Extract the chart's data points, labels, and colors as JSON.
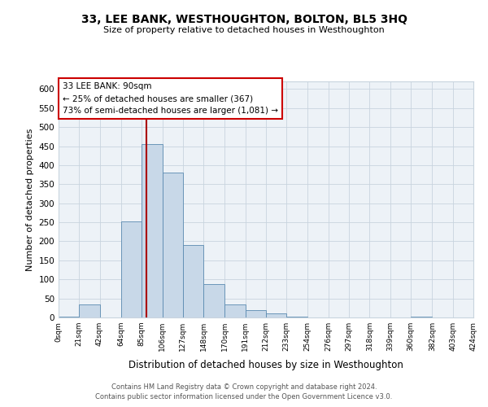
{
  "title": "33, LEE BANK, WESTHOUGHTON, BOLTON, BL5 3HQ",
  "subtitle": "Size of property relative to detached houses in Westhoughton",
  "xlabel": "Distribution of detached houses by size in Westhoughton",
  "ylabel": "Number of detached properties",
  "bin_edges": [
    0,
    21,
    42,
    64,
    85,
    106,
    127,
    148,
    170,
    191,
    212,
    233,
    254,
    276,
    297,
    318,
    339,
    360,
    382,
    403,
    424
  ],
  "bin_counts": [
    2,
    35,
    0,
    252,
    455,
    380,
    190,
    88,
    35,
    20,
    10,
    3,
    0,
    1,
    0,
    0,
    0,
    2,
    0,
    1
  ],
  "bar_color": "#c8d8e8",
  "bar_edge_color": "#5a8ab0",
  "vline_x": 90,
  "vline_color": "#aa0000",
  "ylim": [
    0,
    620
  ],
  "yticks": [
    0,
    50,
    100,
    150,
    200,
    250,
    300,
    350,
    400,
    450,
    500,
    550,
    600
  ],
  "annotation_line1": "33 LEE BANK: 90sqm",
  "annotation_line2": "← 25% of detached houses are smaller (367)",
  "annotation_line3": "73% of semi-detached houses are larger (1,081) →",
  "footer_line1": "Contains HM Land Registry data © Crown copyright and database right 2024.",
  "footer_line2": "Contains public sector information licensed under the Open Government Licence v3.0.",
  "background_color": "#ffffff",
  "plot_bg_color": "#edf2f7",
  "grid_color": "#c8d4de"
}
